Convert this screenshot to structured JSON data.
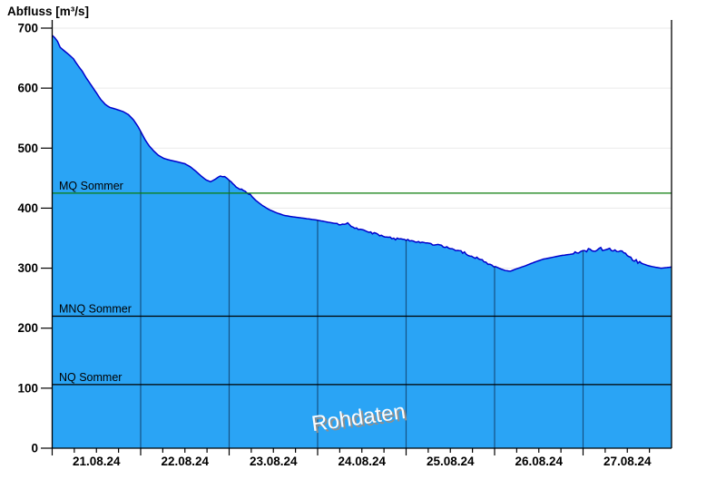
{
  "chart_data": {
    "type": "area",
    "title": "Abfluss [m³/s]",
    "ylabel": "Abfluss [m³/s]",
    "watermark": "Rohdaten",
    "legend_position": "none",
    "grid": "on",
    "x_axis": {
      "start": "21.08.24 00:00",
      "end": "28.08.24 00:00",
      "days_shown": 7,
      "tick_labels": [
        "21.08.24",
        "22.08.24",
        "23.08.24",
        "24.08.24",
        "25.08.24",
        "26.08.24",
        "27.08.24"
      ],
      "minor_tick_interval_hours": 6
    },
    "y_axis": {
      "min": 0,
      "max": 700,
      "tick_step": 100,
      "tick_labels": [
        "0",
        "100",
        "200",
        "300",
        "400",
        "500",
        "600",
        "700"
      ]
    },
    "reference_lines": [
      {
        "label": "MQ Sommer",
        "value": 425,
        "color": "#0a7c0a"
      },
      {
        "label": "MNQ Sommer",
        "value": 220,
        "color": "#000000"
      },
      {
        "label": "NQ Sommer",
        "value": 106,
        "color": "#000000"
      }
    ],
    "series": [
      {
        "name": "Abfluss Rohdaten",
        "unit": "m³/s",
        "points": [
          [
            0.0,
            688
          ],
          [
            0.03,
            684
          ],
          [
            0.06,
            678
          ],
          [
            0.09,
            668
          ],
          [
            0.13,
            663
          ],
          [
            0.18,
            657
          ],
          [
            0.24,
            649
          ],
          [
            0.29,
            638
          ],
          [
            0.34,
            628
          ],
          [
            0.39,
            616
          ],
          [
            0.45,
            603
          ],
          [
            0.5,
            592
          ],
          [
            0.55,
            581
          ],
          [
            0.6,
            573
          ],
          [
            0.65,
            568
          ],
          [
            0.72,
            565
          ],
          [
            0.8,
            561
          ],
          [
            0.86,
            556
          ],
          [
            0.92,
            547
          ],
          [
            0.97,
            536
          ],
          [
            1.0,
            528
          ],
          [
            1.05,
            514
          ],
          [
            1.1,
            503
          ],
          [
            1.15,
            495
          ],
          [
            1.2,
            488
          ],
          [
            1.26,
            483
          ],
          [
            1.33,
            480
          ],
          [
            1.42,
            477
          ],
          [
            1.5,
            474
          ],
          [
            1.56,
            469
          ],
          [
            1.62,
            462
          ],
          [
            1.68,
            454
          ],
          [
            1.74,
            447
          ],
          [
            1.79,
            444
          ],
          [
            1.84,
            448
          ],
          [
            1.9,
            454
          ],
          [
            1.95,
            452
          ],
          [
            2.0,
            446
          ],
          [
            2.06,
            438
          ],
          [
            2.12,
            432
          ],
          [
            2.18,
            428
          ],
          [
            2.24,
            422
          ],
          [
            2.3,
            413
          ],
          [
            2.38,
            404
          ],
          [
            2.46,
            397
          ],
          [
            2.54,
            392
          ],
          [
            2.62,
            388
          ],
          [
            2.7,
            386
          ],
          [
            2.8,
            384
          ],
          [
            2.9,
            382
          ],
          [
            3.0,
            380
          ],
          [
            3.1,
            377
          ],
          [
            3.22,
            374
          ],
          [
            3.3,
            372
          ],
          [
            3.34,
            376
          ],
          [
            3.38,
            369
          ],
          [
            3.48,
            365
          ],
          [
            3.58,
            360
          ],
          [
            3.68,
            356
          ],
          [
            3.78,
            352
          ],
          [
            3.88,
            349
          ],
          [
            4.0,
            347
          ],
          [
            4.12,
            344
          ],
          [
            4.24,
            341
          ],
          [
            4.36,
            338
          ],
          [
            4.48,
            335
          ],
          [
            4.58,
            330
          ],
          [
            4.68,
            324
          ],
          [
            4.78,
            318
          ],
          [
            4.88,
            311
          ],
          [
            4.97,
            305
          ],
          [
            5.05,
            300
          ],
          [
            5.12,
            296
          ],
          [
            5.18,
            295
          ],
          [
            5.25,
            299
          ],
          [
            5.35,
            304
          ],
          [
            5.45,
            310
          ],
          [
            5.55,
            315
          ],
          [
            5.65,
            318
          ],
          [
            5.75,
            321
          ],
          [
            5.85,
            323
          ],
          [
            5.95,
            325
          ],
          [
            6.02,
            328
          ],
          [
            6.08,
            331
          ],
          [
            6.14,
            328
          ],
          [
            6.2,
            333
          ],
          [
            6.26,
            330
          ],
          [
            6.32,
            332
          ],
          [
            6.38,
            329
          ],
          [
            6.44,
            326
          ],
          [
            6.5,
            321
          ],
          [
            6.56,
            316
          ],
          [
            6.62,
            311
          ],
          [
            6.68,
            307
          ],
          [
            6.74,
            304
          ],
          [
            6.8,
            302
          ],
          [
            6.88,
            300
          ],
          [
            6.95,
            301
          ],
          [
            7.0,
            302
          ]
        ]
      }
    ],
    "colors": {
      "area_fill": "#2aa4f5",
      "area_stroke": "#0000cc",
      "h_grid": "#eaeaea",
      "v_grid_over_area": "rgba(0,0,20,0.5)",
      "axis": "#000000",
      "mq_line": "#0a7c0a"
    },
    "noise_texture": [
      {
        "from": 1.9,
        "to": 2.25,
        "amp": 1.2
      },
      {
        "from": 3.2,
        "to": 5.0,
        "amp": 1.8
      },
      {
        "from": 5.9,
        "to": 6.65,
        "amp": 3.0
      }
    ]
  }
}
